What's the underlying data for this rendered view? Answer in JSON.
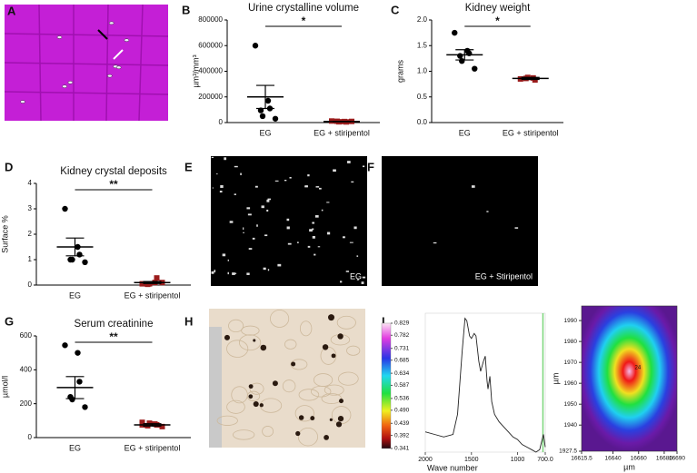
{
  "images": [
    {
      "label": "A"
    },
    {
      "label": "E",
      "caption": "EG"
    },
    {
      "label": "F",
      "caption": "EG + Stiripentol"
    },
    {
      "label": "H"
    }
  ],
  "chart_data": [
    {
      "type": "dot",
      "panel": "B",
      "title": "Urine crystalline volume",
      "ylabel": "µm³/mm³",
      "ylim": [
        0,
        800000
      ],
      "yticks": [
        0,
        200000,
        400000,
        600000,
        800000
      ],
      "significance": "*",
      "series": [
        {
          "name": "EG",
          "color": "#000000",
          "marker": "circle",
          "values": [
            600000,
            170000,
            110000,
            95000,
            50000,
            30000
          ],
          "mean": 200000,
          "error": 90000
        },
        {
          "name": "EG + stiripentol",
          "color": "#9b1c1c",
          "marker": "square",
          "values": [
            12000,
            8000,
            5000,
            10000,
            6000,
            9000
          ],
          "mean": 8000,
          "error": 2000
        }
      ]
    },
    {
      "type": "dot",
      "panel": "C",
      "title": "Kidney weight",
      "ylabel": "grams",
      "ylim": [
        0,
        2
      ],
      "yticks": [
        {
          "value": 0,
          "label": "0.0"
        },
        {
          "value": 0.5,
          "label": "0.5"
        },
        {
          "value": 1,
          "label": "1.0"
        },
        {
          "value": 1.5,
          "label": "1.5"
        },
        {
          "value": 2,
          "label": "2.0"
        }
      ],
      "significance": "*",
      "series": [
        {
          "name": "EG",
          "color": "#000000",
          "marker": "circle",
          "values": [
            1.75,
            1.4,
            1.35,
            1.3,
            1.2,
            1.05
          ],
          "mean": 1.32,
          "error": 0.1
        },
        {
          "name": "EG + stiripentol",
          "color": "#9b1c1c",
          "marker": "square",
          "values": [
            0.85,
            0.87,
            0.83,
            0.86,
            0.88
          ],
          "mean": 0.86,
          "error": 0.02
        }
      ]
    },
    {
      "type": "dot",
      "panel": "D",
      "title": "Kidney crystal deposits",
      "ylabel": "Surface %",
      "ylim": [
        0,
        4
      ],
      "yticks": [
        0,
        1,
        2,
        3,
        4
      ],
      "significance": "**",
      "series": [
        {
          "name": "EG",
          "color": "#000000",
          "marker": "circle",
          "values": [
            3.0,
            1.5,
            1.2,
            1.0,
            1.0,
            0.9
          ],
          "mean": 1.5,
          "error": 0.35
        },
        {
          "name": "EG + stiripentol",
          "color": "#9b1c1c",
          "marker": "square",
          "values": [
            0.05,
            0.1,
            0.28,
            0.03,
            0.05,
            0.1
          ],
          "mean": 0.1,
          "error": 0.04
        }
      ]
    },
    {
      "type": "dot",
      "panel": "G",
      "title": "Serum creatinine",
      "ylabel": "µmol/l",
      "ylim": [
        0,
        600
      ],
      "yticks": [
        0,
        200,
        400,
        600
      ],
      "significance": "**",
      "series": [
        {
          "name": "EG",
          "color": "#000000",
          "marker": "circle",
          "values": [
            545,
            500,
            330,
            240,
            225,
            180
          ],
          "mean": 295,
          "error": 65
        },
        {
          "name": "EG + stiripentol",
          "color": "#9b1c1c",
          "marker": "square",
          "values": [
            90,
            80,
            75,
            70,
            85,
            65,
            75
          ],
          "mean": 75,
          "error": 7
        }
      ]
    },
    {
      "type": "line",
      "panel": "I",
      "xlabel": "Wave number",
      "xlim": [
        2000,
        700
      ],
      "xticks": [
        2000,
        1500,
        1000,
        {
          "value": 700,
          "label": "700.0"
        }
      ],
      "ylim": [
        0.3,
        0.85
      ],
      "color": "#222222",
      "cursor": 725,
      "cursor_color": "#7bd67b",
      "x": [
        2000,
        1900,
        1800,
        1700,
        1650,
        1600,
        1570,
        1550,
        1520,
        1500,
        1470,
        1450,
        1420,
        1400,
        1370,
        1350,
        1330,
        1320,
        1300,
        1280,
        1250,
        1200,
        1150,
        1100,
        1050,
        1000,
        950,
        900,
        850,
        800,
        760,
        740,
        720,
        700
      ],
      "values": [
        0.38,
        0.37,
        0.36,
        0.37,
        0.45,
        0.7,
        0.83,
        0.82,
        0.76,
        0.75,
        0.77,
        0.76,
        0.66,
        0.62,
        0.66,
        0.68,
        0.58,
        0.55,
        0.6,
        0.5,
        0.45,
        0.42,
        0.4,
        0.38,
        0.36,
        0.35,
        0.33,
        0.32,
        0.31,
        0.3,
        0.31,
        0.34,
        0.37,
        0.32
      ]
    },
    {
      "type": "heatmap",
      "xlabel": "µm",
      "ylabel": "µm",
      "annotation": "24",
      "xlim": [
        16615.5,
        16690
      ],
      "xticks": [
        16615.5,
        16640,
        16660,
        16680,
        16690
      ],
      "ylim": [
        1927.5,
        1997
      ],
      "yticks": [
        1927.5,
        1940,
        1950,
        1960,
        1970,
        1980,
        1990
      ],
      "colorbar_lim": [
        0.341,
        0.829
      ],
      "colorbar_ticks": [
        0.829,
        0.782,
        0.731,
        0.685,
        0.634,
        0.587,
        0.536,
        {
          "value": 0.49,
          "label": "0.490"
        },
        0.439,
        0.392,
        0.341
      ]
    }
  ]
}
